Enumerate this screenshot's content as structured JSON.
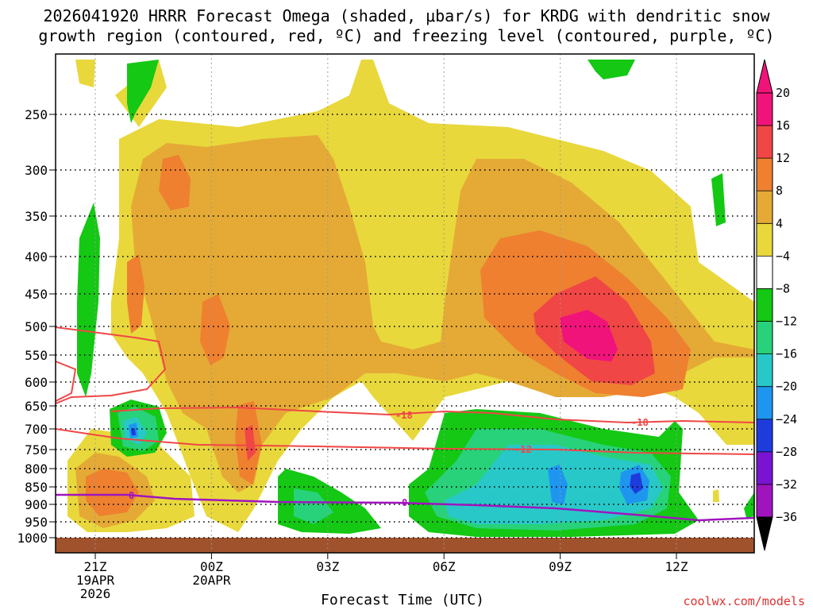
{
  "chart_data": {
    "type": "heatmap",
    "title": "2026041920 HRRR Forecast Omega (shaded, μbar/s) for KRDG with dendritic snow",
    "subtitle": "growth region (contoured, red, ºC) and freezing level (contoured, purple, ºC)",
    "xlabel": "Forecast Time (UTC)",
    "ylabel": "",
    "credit": "coolwx.com/models",
    "y_ticks": [
      "250",
      "300",
      "350",
      "400",
      "450",
      "500",
      "550",
      "600",
      "650",
      "700",
      "750",
      "800",
      "850",
      "900",
      "950",
      "1000"
    ],
    "y_values": [
      250,
      300,
      350,
      400,
      450,
      500,
      550,
      600,
      650,
      700,
      750,
      800,
      850,
      900,
      950,
      1000
    ],
    "x_ticks": [
      {
        "hour": 21,
        "lines": [
          "21Z",
          "19APR",
          "2026"
        ]
      },
      {
        "hour": 24,
        "lines": [
          "00Z",
          "20APR"
        ]
      },
      {
        "hour": 27,
        "lines": [
          "03Z"
        ]
      },
      {
        "hour": 30,
        "lines": [
          "06Z"
        ]
      },
      {
        "hour": 33,
        "lines": [
          "09Z"
        ]
      },
      {
        "hour": 36,
        "lines": [
          "12Z"
        ]
      }
    ],
    "x_range_hours": [
      20,
      38
    ],
    "grid": true,
    "colorbar": {
      "labels": [
        "20",
        "16",
        "12",
        "8",
        "4",
        "−4",
        "−8",
        "−12",
        "−16",
        "−20",
        "−24",
        "−28",
        "−32",
        "−36"
      ],
      "colors": [
        "#f0147a",
        "#f04646",
        "#ee8030",
        "#e5aa35",
        "#e8d83c",
        "#ffffff",
        "#14c814",
        "#28d27a",
        "#28c8c8",
        "#1e96f0",
        "#1e3cdc",
        "#7814d2",
        "#a014be",
        "#aaaaaa"
      ]
    },
    "contours": [
      {
        "label": "-18",
        "color": "#f04646",
        "value": -18
      },
      {
        "label": "-12",
        "color": "#f04646",
        "value": -12
      },
      {
        "label": "0",
        "color": "#a014be",
        "value": 0
      }
    ]
  }
}
